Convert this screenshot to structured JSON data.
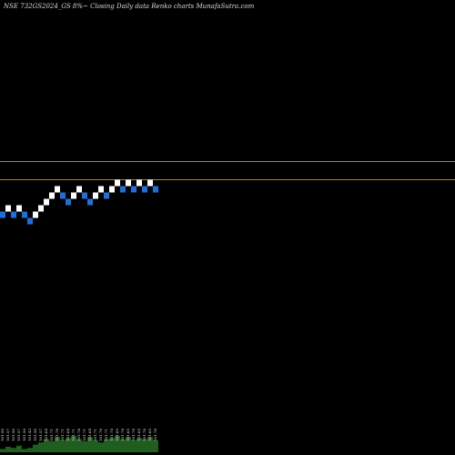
{
  "chart_data": {
    "type": "renko",
    "title": "NSE 732GS2024_GS 8%~  Closing Daily data  Renko  charts MunafaSutra.com",
    "background": "#000000",
    "colors": {
      "up": "#ffffff",
      "down": "#1e6fdc",
      "line": "#c8781e",
      "volume_fill": "#1f5e1f"
    },
    "reference_lines": [
      102.05,
      101.85
    ],
    "ylim": [
      98.0,
      104.0
    ],
    "bricks": [
      {
        "dir": "down",
        "low": 101.43,
        "high": 101.5
      },
      {
        "dir": "up",
        "low": 101.5,
        "high": 101.57
      },
      {
        "dir": "down",
        "low": 101.43,
        "high": 101.5
      },
      {
        "dir": "up",
        "low": 101.5,
        "high": 101.57
      },
      {
        "dir": "down",
        "low": 101.43,
        "high": 101.5
      },
      {
        "dir": "down",
        "low": 101.36,
        "high": 101.43
      },
      {
        "dir": "up",
        "low": 101.43,
        "high": 101.5
      },
      {
        "dir": "up",
        "low": 101.5,
        "high": 101.57
      },
      {
        "dir": "up",
        "low": 101.57,
        "high": 101.64
      },
      {
        "dir": "up",
        "low": 101.64,
        "high": 101.71
      },
      {
        "dir": "up",
        "low": 101.71,
        "high": 101.78
      },
      {
        "dir": "down",
        "low": 101.64,
        "high": 101.71
      },
      {
        "dir": "down",
        "low": 101.57,
        "high": 101.64
      },
      {
        "dir": "up",
        "low": 101.64,
        "high": 101.71
      },
      {
        "dir": "up",
        "low": 101.71,
        "high": 101.78
      },
      {
        "dir": "down",
        "low": 101.64,
        "high": 101.71
      },
      {
        "dir": "down",
        "low": 101.57,
        "high": 101.64
      },
      {
        "dir": "up",
        "low": 101.64,
        "high": 101.71
      },
      {
        "dir": "up",
        "low": 101.71,
        "high": 101.78
      },
      {
        "dir": "down",
        "low": 101.64,
        "high": 101.71
      },
      {
        "dir": "up",
        "low": 101.71,
        "high": 101.78
      },
      {
        "dir": "up",
        "low": 101.78,
        "high": 101.85
      },
      {
        "dir": "down",
        "low": 101.71,
        "high": 101.78
      },
      {
        "dir": "up",
        "low": 101.78,
        "high": 101.85
      },
      {
        "dir": "down",
        "low": 101.71,
        "high": 101.78
      },
      {
        "dir": "up",
        "low": 101.78,
        "high": 101.85
      },
      {
        "dir": "down",
        "low": 101.71,
        "high": 101.78
      },
      {
        "dir": "up",
        "low": 101.78,
        "high": 101.85
      },
      {
        "dir": "down",
        "low": 101.71,
        "high": 101.78
      }
    ],
    "volume_labels": [
      "101.50",
      "101.57",
      "101.50",
      "101.57",
      "101.50",
      "101.43",
      "101.50",
      "101.57",
      "101.64",
      "101.71",
      "101.78",
      "101.71",
      "101.64",
      "101.71",
      "101.78",
      "101.71",
      "101.64",
      "101.71",
      "101.78",
      "101.71",
      "101.78",
      "101.85",
      "101.78",
      "101.85",
      "101.78",
      "101.85",
      "101.78",
      "101.85",
      "101.78"
    ],
    "volumes": [
      3,
      5,
      4,
      6,
      3,
      4,
      7,
      9,
      12,
      10,
      14,
      11,
      13,
      15,
      12,
      10,
      14,
      11,
      9,
      12,
      13,
      15,
      12,
      14,
      11,
      13,
      12,
      14,
      11
    ]
  }
}
